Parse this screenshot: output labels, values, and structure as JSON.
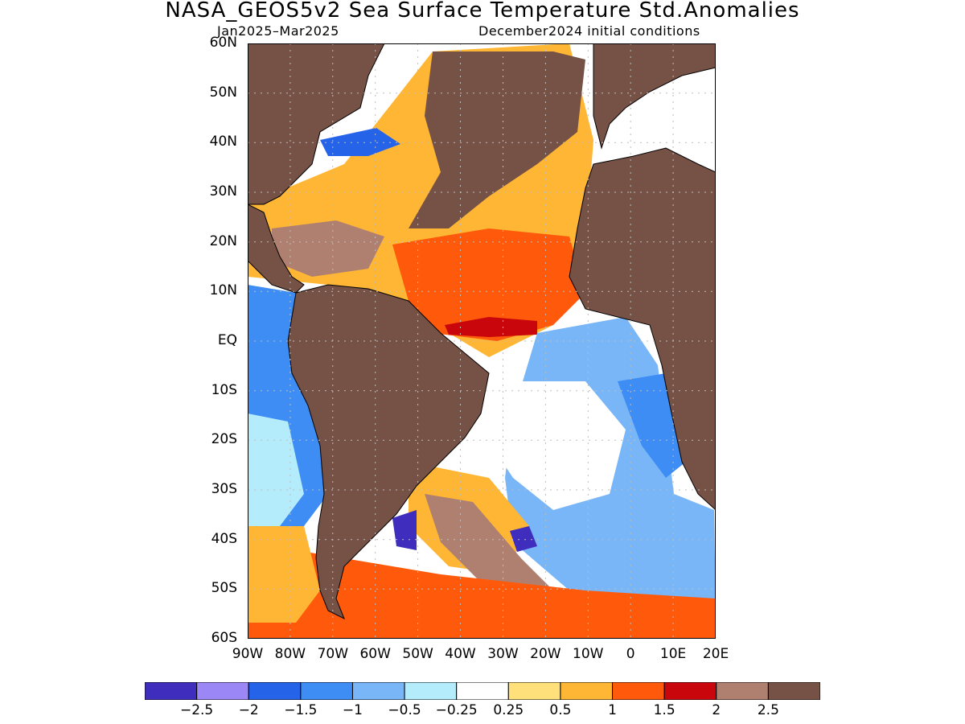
{
  "header": {
    "title": "NASA_GEOS5v2 Sea Surface Temperature Std.Anomalies",
    "period": "Jan2025–Mar2025",
    "init": "December2024 initial conditions"
  },
  "map": {
    "lat_labels": [
      "60N",
      "50N",
      "40N",
      "30N",
      "20N",
      "10N",
      "EQ",
      "10S",
      "20S",
      "30S",
      "40S",
      "50S",
      "60S"
    ],
    "lon_labels": [
      "90W",
      "80W",
      "70W",
      "60W",
      "50W",
      "40W",
      "30W",
      "20W",
      "10W",
      "0",
      "10E",
      "20E"
    ],
    "land_color": "#765145",
    "ocean_background": "#ffffff"
  },
  "colorbar": {
    "colors": [
      "#3f2dbd",
      "#9b87f5",
      "#2563e8",
      "#3d8df5",
      "#78b6f7",
      "#b5ecfb",
      "#ffffff",
      "#ffe07a",
      "#ffb634",
      "#ff5a0b",
      "#c9060b",
      "#af8070",
      "#765145"
    ],
    "labels": [
      "−2.5",
      "−2",
      "−1.5",
      "−1",
      "−0.5",
      "−0.25",
      "0.25",
      "0.5",
      "1",
      "1.5",
      "2",
      "2.5"
    ]
  }
}
